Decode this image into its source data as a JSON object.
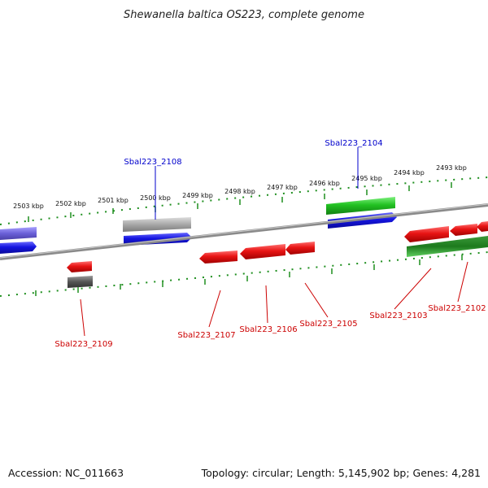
{
  "title": "Shewanella baltica OS223, complete genome",
  "footer": {
    "accession": "Accession: NC_011663",
    "summary": "Topology: circular; Length: 5,145,902 bp; Genes: 4,281"
  },
  "colors": {
    "background": "#ffffff",
    "backbone": "#8a8a8a",
    "tick": "#1f8f1f",
    "forward_cds": "#1515e0",
    "reverse_cds": "#e81414",
    "forward_gene_green": "#22c222",
    "gray_feature": "#a8a8a8",
    "purple_feature": "#6a60d8",
    "label_blue": "#0000cc",
    "label_red": "#cc0000"
  },
  "tick_labels": [
    "2503 kbp",
    "2502 kbp",
    "2501 kbp",
    "2500 kbp",
    "2499 kbp",
    "2498 kbp",
    "2497 kbp",
    "2496 kbp",
    "2495 kbp",
    "2494 kbp",
    "2493 kbp"
  ],
  "gene_labels": [
    {
      "text": "Sbal223_2108",
      "strand": "forward"
    },
    {
      "text": "Sbal223_2104",
      "strand": "forward"
    },
    {
      "text": "Sbal223_2109",
      "strand": "reverse"
    },
    {
      "text": "Sbal223_2107",
      "strand": "reverse"
    },
    {
      "text": "Sbal223_2106",
      "strand": "reverse"
    },
    {
      "text": "Sbal223_2105",
      "strand": "reverse"
    },
    {
      "text": "Sbal223_2103",
      "strand": "reverse"
    },
    {
      "text": "Sbal223_2102",
      "strand": "reverse"
    }
  ]
}
